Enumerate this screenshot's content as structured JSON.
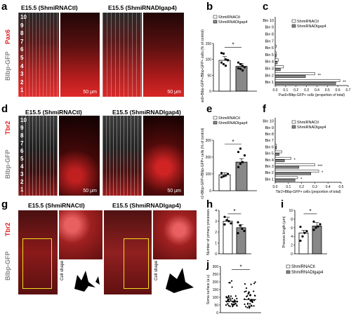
{
  "panels": {
    "a": {
      "label": "a",
      "headers": [
        "E15.5 (ShmiRNACtl)",
        "E15.5 (ShmiRNADlgap4)"
      ],
      "marker": "Pax6",
      "sidelabel": "Blbp-GFP",
      "bins": [
        "10",
        "9",
        "8",
        "7",
        "6",
        "5",
        "4",
        "3",
        "2",
        "1"
      ],
      "scale": [
        "50 μm",
        "50 μm"
      ]
    },
    "d": {
      "label": "d",
      "headers": [
        "E15.5 (ShmiRNACtl)",
        "E15.5 (ShmiRNADlgap4)"
      ],
      "marker": "Tbr2",
      "sidelabel": "Blbp-GFP",
      "bins": [
        "10",
        "9",
        "8",
        "7",
        "6",
        "5",
        "4",
        "3",
        "2",
        "1"
      ],
      "scale": [
        "50 μm",
        "50 μm"
      ]
    },
    "g": {
      "label": "g",
      "headers": [
        "E15.5 (ShmiRNACtl)",
        "E15.5 (ShmiRNADlgap4)"
      ],
      "marker": "Tbr2",
      "sidelabel": "Blbp-GFP",
      "cellshape": "Cell shape"
    }
  },
  "chart_data": [
    {
      "id": "b",
      "type": "bar",
      "categories": [
        "ShmiRNACtl",
        "ShmiRNADlgap4"
      ],
      "values": [
        97,
        78
      ],
      "ylabel": "Pax6+Blbp-GFP+/Blbp-GFP+ cells (% of control)",
      "ylim": [
        0,
        150
      ],
      "yticks": [
        "0",
        "50",
        "100",
        "150"
      ],
      "significance": "*",
      "legend": [
        "ShmiRNACtl",
        "ShmiRNADlgap4"
      ],
      "points": [
        [
          120,
          118,
          100,
          98,
          90,
          85,
          80,
          97
        ],
        [
          90,
          85,
          80,
          75,
          72,
          70,
          65
        ]
      ]
    },
    {
      "id": "c",
      "type": "bar",
      "orientation": "horizontal",
      "categories": [
        "Bin 10",
        "Bin 9",
        "Bin 8",
        "Bin 7",
        "Bin 6",
        "Bin 5",
        "Bin 4",
        "Bin 3",
        "Bin 2",
        "Bin 1"
      ],
      "series": [
        {
          "name": "ShmiRNACtl",
          "values": [
            0,
            0,
            0,
            0,
            0.01,
            0.01,
            0.03,
            0.08,
            0.38,
            0.62
          ]
        },
        {
          "name": "ShmiRNADlgap4",
          "values": [
            0,
            0,
            0,
            0,
            0,
            0.01,
            0.02,
            0.05,
            0.29,
            0.58
          ]
        }
      ],
      "xlabel": "Pax6+Blbp-GFP+ cells (proportion of total)",
      "xticks": [
        "0.0",
        "0.1",
        "0.2",
        "0.3",
        "0.4",
        "0.5",
        "0.6",
        "0.7"
      ],
      "xlim": [
        0,
        0.7
      ],
      "stars": {
        "Bin 2": "**",
        "Bin 1": "**"
      }
    },
    {
      "id": "e",
      "type": "bar",
      "categories": [
        "ShmiRNACtl",
        "ShmiRNADlgap4"
      ],
      "values": [
        95,
        170
      ],
      "ylabel": "Tbr2+Blbp-GFP+/Blbp-GFP+ cells (% of control)",
      "ylim": [
        0,
        300
      ],
      "yticks": [
        "0",
        "100",
        "200",
        "300"
      ],
      "significance": "*",
      "legend": [
        "ShmiRNACtl",
        "ShmiRNADlgap4"
      ],
      "points": [
        [
          80,
          85,
          90,
          100,
          105
        ],
        [
          140,
          160,
          170,
          210,
          230,
          250
        ]
      ]
    },
    {
      "id": "f",
      "type": "bar",
      "orientation": "horizontal",
      "categories": [
        "Bin 10",
        "Bin 9",
        "Bin 8",
        "Bin 7",
        "Bin 6",
        "Bin 5",
        "Bin 4",
        "Bin 3",
        "Bin 2",
        "Bin 1"
      ],
      "series": [
        {
          "name": "ShmiRNACtl",
          "values": [
            0,
            0,
            0,
            0,
            0.01,
            0.05,
            0.12,
            0.3,
            0.33,
            0.17
          ]
        },
        {
          "name": "ShmiRNADlgap4",
          "values": [
            0,
            0,
            0,
            0,
            0.01,
            0.03,
            0.07,
            0.18,
            0.27,
            0.15
          ]
        }
      ],
      "xlabel": "Tbr2+Blbp-GFP+ cells (proportion of total)",
      "xticks": [
        "0.0",
        "0.1",
        "0.2",
        "0.3",
        "0.4",
        "0.5"
      ],
      "xlim": [
        0,
        0.5
      ],
      "stars": {
        "Bin 4": "*",
        "Bin 3": "***",
        "Bin 2": "*",
        "Bin 1": "*"
      }
    },
    {
      "id": "h",
      "type": "bar",
      "categories": [
        "ShmiRNACtl",
        "ShmiRNADlgap4"
      ],
      "values": [
        3,
        2.4
      ],
      "ylabel": "Number of primary processes",
      "ylim": [
        0,
        4
      ],
      "yticks": [
        "0",
        "1",
        "2",
        "3",
        "4"
      ],
      "significance": "*",
      "points": [
        [
          3.4,
          3.1,
          3,
          2.8,
          2.7
        ],
        [
          2.9,
          2.6,
          2.3,
          2.1,
          1.9
        ]
      ]
    },
    {
      "id": "i",
      "type": "bar",
      "categories": [
        "ShmiRNACtl",
        "ShmiRNADlgap4"
      ],
      "values": [
        4.8,
        6.4
      ],
      "ylabel": "Process length (μm)",
      "ylim": [
        0,
        10
      ],
      "yticks": [
        "0",
        "2",
        "4",
        "6",
        "8",
        "10"
      ],
      "significance": "*",
      "points": [
        [
          3,
          4,
          4.8,
          5.2,
          6.2
        ],
        [
          5.5,
          6,
          6.3,
          6.8,
          7.4
        ]
      ]
    },
    {
      "id": "j",
      "type": "scatter",
      "categories": [
        "ShmiRNACtl",
        "ShmiRNADlgap4"
      ],
      "values": [
        75,
        85
      ],
      "ylabel": "Soma surface (a.u)",
      "ylim": [
        0,
        300
      ],
      "yticks": [
        "0",
        "50",
        "100",
        "150",
        "200",
        "250",
        "300"
      ],
      "significance": "*",
      "legend": [
        "ShmiRNACtl",
        "ShmiRNADlgap4"
      ]
    }
  ]
}
